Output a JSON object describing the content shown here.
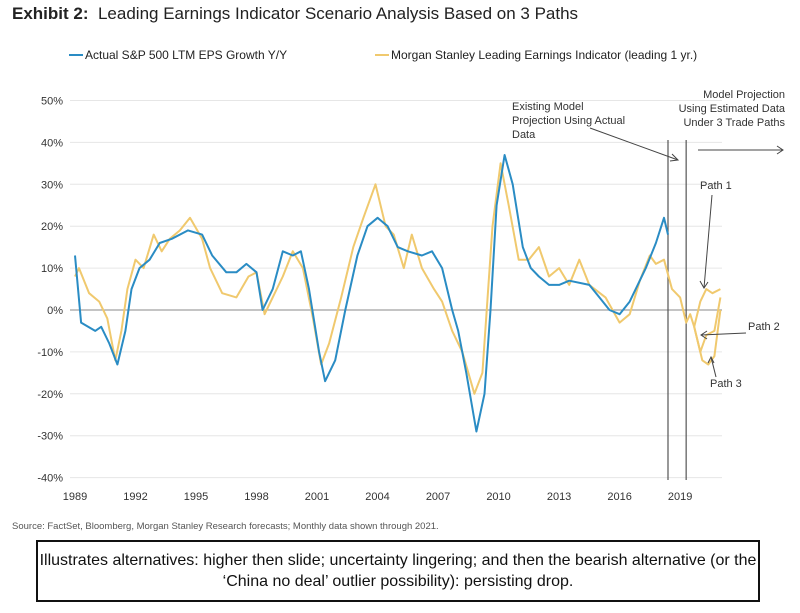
{
  "chart_data": {
    "type": "line",
    "title_bold": "Exhibit 2:",
    "title": "Leading Earnings Indicator Scenario Analysis Based on 3 Paths",
    "xlabel": "",
    "ylabel": "",
    "xlim": [
      1989,
      2021.6
    ],
    "ylim": [
      -40,
      50
    ],
    "x_ticks": [
      "1989",
      "1992",
      "1995",
      "1998",
      "2001",
      "2004",
      "2007",
      "2010",
      "2013",
      "2016",
      "2019"
    ],
    "y_ticks": [
      "50%",
      "40%",
      "30%",
      "20%",
      "10%",
      "0%",
      "-10%",
      "-20%",
      "-30%",
      "-40%"
    ],
    "grid": true,
    "series": [
      {
        "name": "Actual S&P 500 LTM EPS Growth Y/Y",
        "color": "#2a8cc4",
        "points": [
          [
            1989,
            13
          ],
          [
            1989.3,
            -3
          ],
          [
            1990,
            -5
          ],
          [
            1990.3,
            -4
          ],
          [
            1990.7,
            -8
          ],
          [
            1991.1,
            -13
          ],
          [
            1991.5,
            -5
          ],
          [
            1991.8,
            5
          ],
          [
            1992.2,
            10
          ],
          [
            1992.7,
            12
          ],
          [
            1993.2,
            16
          ],
          [
            1993.8,
            17
          ],
          [
            1994.6,
            19
          ],
          [
            1995.3,
            18
          ],
          [
            1995.8,
            13
          ],
          [
            1996.5,
            9
          ],
          [
            1997,
            9
          ],
          [
            1997.5,
            11
          ],
          [
            1998,
            9
          ],
          [
            1998.3,
            0
          ],
          [
            1998.8,
            5
          ],
          [
            1999.3,
            14
          ],
          [
            1999.8,
            13
          ],
          [
            2000.2,
            14
          ],
          [
            2000.6,
            5
          ],
          [
            2001.1,
            -10
          ],
          [
            2001.4,
            -17
          ],
          [
            2001.9,
            -12
          ],
          [
            2002.4,
            0
          ],
          [
            2003,
            13
          ],
          [
            2003.5,
            20
          ],
          [
            2004,
            22
          ],
          [
            2004.5,
            20
          ],
          [
            2005,
            15
          ],
          [
            2005.5,
            14
          ],
          [
            2006.2,
            13
          ],
          [
            2006.7,
            14
          ],
          [
            2007.2,
            10
          ],
          [
            2007.7,
            0
          ],
          [
            2008,
            -5
          ],
          [
            2008.4,
            -15
          ],
          [
            2008.9,
            -29
          ],
          [
            2009.3,
            -20
          ],
          [
            2009.6,
            0
          ],
          [
            2009.9,
            25
          ],
          [
            2010.3,
            37
          ],
          [
            2010.7,
            30
          ],
          [
            2011.2,
            15
          ],
          [
            2011.6,
            10
          ],
          [
            2012,
            8
          ],
          [
            2012.5,
            6
          ],
          [
            2013,
            6
          ],
          [
            2013.5,
            7
          ],
          [
            2014.5,
            6
          ],
          [
            2015,
            3
          ],
          [
            2015.5,
            0
          ],
          [
            2016,
            -1
          ],
          [
            2016.5,
            2
          ],
          [
            2017.3,
            10
          ],
          [
            2017.8,
            16
          ],
          [
            2018.2,
            22
          ],
          [
            2018.4,
            18
          ]
        ]
      },
      {
        "name": "Morgan Stanley Leading Earnings Indicator (leading 1 yr.)",
        "color": "#f0c96e",
        "points": [
          [
            1989,
            8
          ],
          [
            1989.2,
            10
          ],
          [
            1989.7,
            4
          ],
          [
            1990.2,
            2
          ],
          [
            1990.6,
            -2
          ],
          [
            1991,
            -12
          ],
          [
            1991.3,
            -5
          ],
          [
            1991.6,
            5
          ],
          [
            1992,
            12
          ],
          [
            1992.4,
            10
          ],
          [
            1992.9,
            18
          ],
          [
            1993.3,
            14
          ],
          [
            1993.7,
            17
          ],
          [
            1994.2,
            19
          ],
          [
            1994.7,
            22
          ],
          [
            1995.3,
            17
          ],
          [
            1995.7,
            10
          ],
          [
            1996.3,
            4
          ],
          [
            1997,
            3
          ],
          [
            1997.6,
            8
          ],
          [
            1998,
            9
          ],
          [
            1998.4,
            -1
          ],
          [
            1998.8,
            3
          ],
          [
            1999.3,
            8
          ],
          [
            1999.8,
            14
          ],
          [
            2000.3,
            10
          ],
          [
            2000.8,
            -2
          ],
          [
            2001.2,
            -13
          ],
          [
            2001.6,
            -8
          ],
          [
            2002.2,
            3
          ],
          [
            2002.8,
            15
          ],
          [
            2003.3,
            22
          ],
          [
            2003.9,
            30
          ],
          [
            2004.4,
            20
          ],
          [
            2004.8,
            18
          ],
          [
            2005.3,
            10
          ],
          [
            2005.7,
            18
          ],
          [
            2006.2,
            10
          ],
          [
            2006.8,
            5
          ],
          [
            2007.2,
            2
          ],
          [
            2007.7,
            -5
          ],
          [
            2008.2,
            -10
          ],
          [
            2008.8,
            -20
          ],
          [
            2009.2,
            -15
          ],
          [
            2009.7,
            20
          ],
          [
            2010.1,
            35
          ],
          [
            2010.5,
            25
          ],
          [
            2011,
            12
          ],
          [
            2011.5,
            12
          ],
          [
            2012,
            15
          ],
          [
            2012.5,
            8
          ],
          [
            2013,
            10
          ],
          [
            2013.5,
            6
          ],
          [
            2014,
            12
          ],
          [
            2014.5,
            6
          ],
          [
            2015.3,
            3
          ],
          [
            2016,
            -3
          ],
          [
            2016.5,
            -1
          ],
          [
            2017,
            7
          ],
          [
            2017.5,
            13
          ],
          [
            2017.8,
            11
          ],
          [
            2018.2,
            12
          ],
          [
            2018.6,
            5
          ],
          [
            2019,
            3
          ],
          [
            2019.3,
            -3
          ],
          [
            2019.5,
            -1
          ],
          [
            2019.7,
            -4
          ]
        ]
      },
      {
        "name": "Path 1",
        "color": "#f0c96e",
        "points": [
          [
            2019.7,
            -4
          ],
          [
            2020,
            2
          ],
          [
            2020.3,
            5
          ],
          [
            2020.6,
            4
          ],
          [
            2021,
            5
          ]
        ]
      },
      {
        "name": "Path 2",
        "color": "#f0c96e",
        "points": [
          [
            2019.7,
            -4
          ],
          [
            2020,
            -10
          ],
          [
            2020.3,
            -6
          ],
          [
            2020.7,
            -5
          ],
          [
            2021,
            3
          ]
        ]
      },
      {
        "name": "Path 3",
        "color": "#f0c96e",
        "points": [
          [
            2019.7,
            -4
          ],
          [
            2020.1,
            -12
          ],
          [
            2020.4,
            -13
          ],
          [
            2020.7,
            -11
          ],
          [
            2021,
            0
          ]
        ]
      }
    ],
    "vertical_markers": [
      2018.4,
      2019.3
    ],
    "annotations": {
      "existing": [
        "Existing Model",
        "Projection Using Actual",
        "Data"
      ],
      "projection": [
        "Model Projection",
        "Using Estimated Data",
        "Under 3 Trade Paths"
      ],
      "path1": "Path 1",
      "path2": "Path 2",
      "path3": "Path 3"
    },
    "legend_position": "top"
  },
  "source": "Source: FactSet, Bloomberg, Morgan Stanley Research forecasts; Monthly data shown through 2021.",
  "caption": "Illustrates alternatives: higher then slide; uncertainty lingering; and then the bearish alternative (or the ‘China no deal’ outlier possibility): persisting drop."
}
